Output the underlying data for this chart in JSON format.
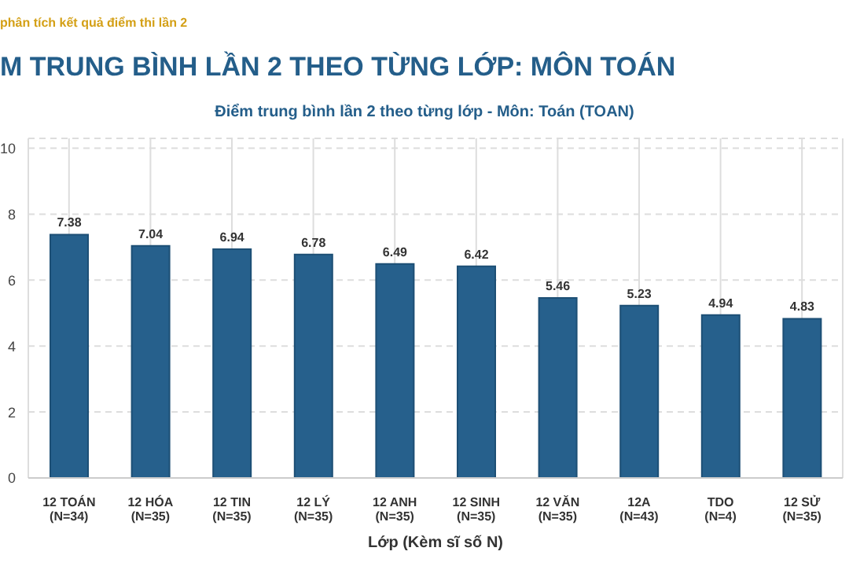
{
  "chart_data": {
    "type": "bar",
    "title": "M TRUNG BÌNH LẦN 2 THEO TỪNG LỚP: MÔN TOÁN",
    "subtitle": "Điểm trung bình lần 2 theo từng lớp - Môn: Toán (TOAN)",
    "annotations": [
      "phân tích kết quả điểm thi lần 2"
    ],
    "xlabel": "Lớp (Kèm sĩ số N)",
    "categories": [
      "12 TOÁN\n(N=34)",
      "12 HÓA\n(N=35)",
      "12 TIN\n(N=35)",
      "12 LÝ\n(N=35)",
      "12 ANH\n(N=35)",
      "12 SINH\n(N=35)",
      "12 VĂN\n(N=35)",
      "12A\n(N=43)",
      "TDO\n(N=4)",
      "12 SỬ\n(N=35)"
    ],
    "values": [
      7.38,
      7.04,
      6.94,
      6.78,
      6.49,
      6.42,
      5.46,
      5.23,
      4.94,
      4.83
    ],
    "color": "#26608c",
    "ylim": [
      0,
      10.3
    ],
    "yticks": [
      0,
      2,
      4,
      6,
      8,
      10
    ],
    "grid": true,
    "data_labels": true
  }
}
